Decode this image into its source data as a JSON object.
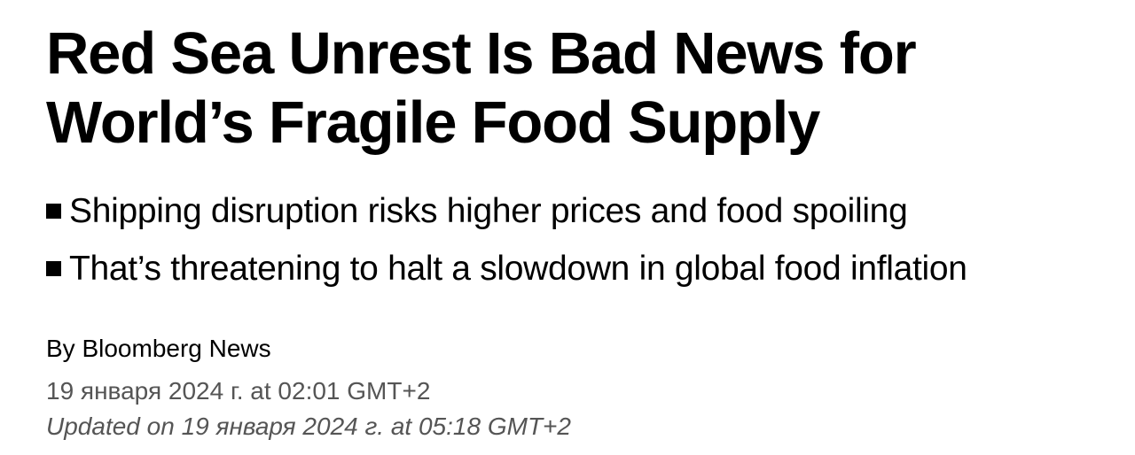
{
  "headline": {
    "line1": "Red Sea Unrest Is Bad News for",
    "line2": "World’s Fragile Food Supply"
  },
  "bullets": [
    "Shipping disruption risks higher prices and food spoiling",
    "That’s threatening to halt a slowdown in global food inflation"
  ],
  "byline": "By Bloomberg News",
  "published": "19 января 2024 г. at 02:01 GMT+2",
  "updated": "Updated on 19 января 2024 г. at 05:18 GMT+2"
}
